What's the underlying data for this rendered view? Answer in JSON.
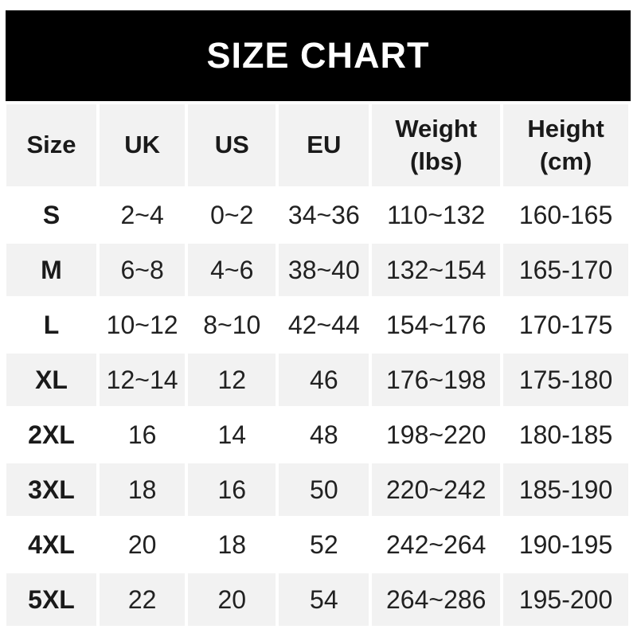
{
  "banner": {
    "title": "SIZE CHART",
    "background": "#000000",
    "text_color": "#ffffff"
  },
  "table": {
    "header_display": [
      "Size",
      "UK",
      "US",
      "EU",
      "Weight\n(lbs)",
      "Height\n(cm)"
    ],
    "alt_row_color": "#f2f2f2",
    "text_color": "#212121"
  },
  "chart_data": {
    "type": "table",
    "title": "SIZE CHART",
    "columns": [
      "Size",
      "UK",
      "US",
      "EU",
      "Weight (lbs)",
      "Height (cm)"
    ],
    "rows": [
      [
        "S",
        "2~4",
        "0~2",
        "34~36",
        "110~132",
        "160-165"
      ],
      [
        "M",
        "6~8",
        "4~6",
        "38~40",
        "132~154",
        "165-170"
      ],
      [
        "L",
        "10~12",
        "8~10",
        "42~44",
        "154~176",
        "170-175"
      ],
      [
        "XL",
        "12~14",
        "12",
        "46",
        "176~198",
        "175-180"
      ],
      [
        "2XL",
        "16",
        "14",
        "48",
        "198~220",
        "180-185"
      ],
      [
        "3XL",
        "18",
        "16",
        "50",
        "220~242",
        "185-190"
      ],
      [
        "4XL",
        "20",
        "18",
        "52",
        "242~264",
        "190-195"
      ],
      [
        "5XL",
        "22",
        "20",
        "54",
        "264~286",
        "195-200"
      ]
    ]
  }
}
